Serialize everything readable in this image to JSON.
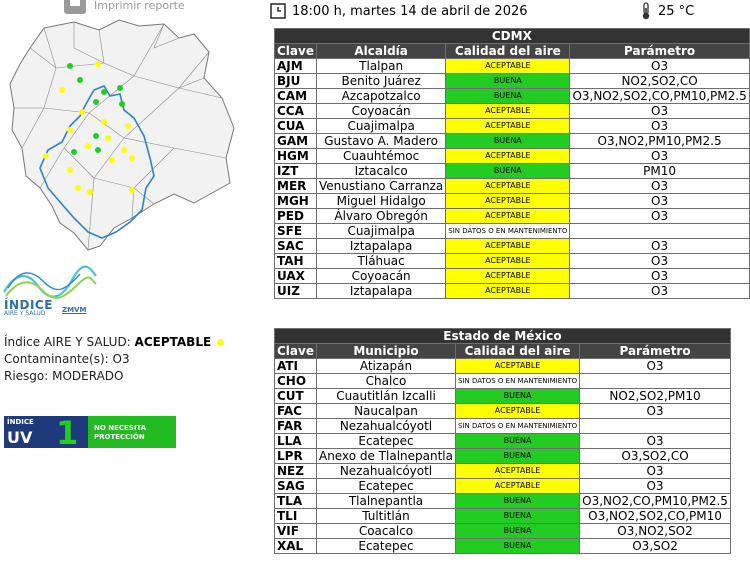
{
  "header": {
    "print_label": "Imprimir reporte",
    "datetime": "18:00 h, martes 14 de abril de 2026",
    "temperature": "25 °C"
  },
  "logo": {
    "title": "ÍNDICE",
    "subtitle": "AIRE Y SALUD",
    "region": "ZMVM"
  },
  "summary": {
    "index_label": "Índice AIRE Y SALUD: ",
    "index_value": "ACEPTABLE",
    "pollutant_label": "Contaminante(s): ",
    "pollutant_value": "O3",
    "risk_label": "Riesgo: ",
    "risk_value": "MODERADO"
  },
  "uv": {
    "index_small": "ÍNDICE",
    "uv_text": "UV",
    "value": "1",
    "message": "NO NECESITA PROTECCIÓN"
  },
  "colors": {
    "aceptable": "#ffff00",
    "buena": "#22cc22",
    "header": "#333333"
  },
  "cdmx": {
    "title": "CDMX",
    "headers": [
      "Clave",
      "Alcaldía",
      "Calidad del aire",
      "Parámetro"
    ],
    "rows": [
      {
        "code": "AJM",
        "name": "Tlalpan",
        "quality": "ACEPTABLE",
        "param": "O3"
      },
      {
        "code": "BJU",
        "name": "Benito Juárez",
        "quality": "BUENA",
        "param": "NO2,SO2,CO"
      },
      {
        "code": "CAM",
        "name": "Azcapotzalco",
        "quality": "BUENA",
        "param": "O3,NO2,SO2,CO,PM10,PM2.5"
      },
      {
        "code": "CCA",
        "name": "Coyoacán",
        "quality": "ACEPTABLE",
        "param": "O3"
      },
      {
        "code": "CUA",
        "name": "Cuajimalpa",
        "quality": "ACEPTABLE",
        "param": "O3"
      },
      {
        "code": "GAM",
        "name": "Gustavo A. Madero",
        "quality": "BUENA",
        "param": "O3,NO2,PM10,PM2.5"
      },
      {
        "code": "HGM",
        "name": "Cuauhtémoc",
        "quality": "ACEPTABLE",
        "param": "O3"
      },
      {
        "code": "IZT",
        "name": "Iztacalco",
        "quality": "BUENA",
        "param": "PM10"
      },
      {
        "code": "MER",
        "name": "Venustiano Carranza",
        "quality": "ACEPTABLE",
        "param": "O3"
      },
      {
        "code": "MGH",
        "name": "Miguel Hidalgo",
        "quality": "ACEPTABLE",
        "param": "O3"
      },
      {
        "code": "PED",
        "name": "Álvaro Obregón",
        "quality": "ACEPTABLE",
        "param": "O3"
      },
      {
        "code": "SFE",
        "name": "Cuajimalpa",
        "quality": "SIN DATOS O EN MANTENIMIENTO",
        "param": ""
      },
      {
        "code": "SAC",
        "name": "Iztapalapa",
        "quality": "ACEPTABLE",
        "param": "O3"
      },
      {
        "code": "TAH",
        "name": "Tláhuac",
        "quality": "ACEPTABLE",
        "param": "O3"
      },
      {
        "code": "UAX",
        "name": "Coyoacán",
        "quality": "ACEPTABLE",
        "param": "O3"
      },
      {
        "code": "UIZ",
        "name": "Iztapalapa",
        "quality": "ACEPTABLE",
        "param": "O3"
      }
    ]
  },
  "edomex": {
    "title": "Estado de México",
    "headers": [
      "Clave",
      "Municipio",
      "Calidad del aire",
      "Parámetro"
    ],
    "rows": [
      {
        "code": "ATI",
        "name": "Atizapán",
        "quality": "ACEPTABLE",
        "param": "O3"
      },
      {
        "code": "CHO",
        "name": "Chalco",
        "quality": "SIN DATOS O EN MANTENIMIENTO",
        "param": ""
      },
      {
        "code": "CUT",
        "name": "Cuautitlán Izcalli",
        "quality": "BUENA",
        "param": "NO2,SO2,PM10"
      },
      {
        "code": "FAC",
        "name": "Naucalpan",
        "quality": "ACEPTABLE",
        "param": "O3"
      },
      {
        "code": "FAR",
        "name": "Nezahualcóyotl",
        "quality": "SIN DATOS O EN MANTENIMIENTO",
        "param": ""
      },
      {
        "code": "LLA",
        "name": "Ecatepec",
        "quality": "BUENA",
        "param": "O3"
      },
      {
        "code": "LPR",
        "name": "Anexo de Tlalnepantla",
        "quality": "BUENA",
        "param": "O3,SO2,CO"
      },
      {
        "code": "NEZ",
        "name": "Nezahualcóyotl",
        "quality": "ACEPTABLE",
        "param": "O3"
      },
      {
        "code": "SAG",
        "name": "Ecatepec",
        "quality": "ACEPTABLE",
        "param": "O3"
      },
      {
        "code": "TLA",
        "name": "Tlalnepantla",
        "quality": "BUENA",
        "param": "O3,NO2,CO,PM10,PM2.5"
      },
      {
        "code": "TLI",
        "name": "Tultitlán",
        "quality": "BUENA",
        "param": "O3,NO2,SO2,CO,PM10"
      },
      {
        "code": "VIF",
        "name": "Coacalco",
        "quality": "BUENA",
        "param": "O3,NO2,SO2"
      },
      {
        "code": "XAL",
        "name": "Ecatepec",
        "quality": "BUENA",
        "param": "O3,SO2"
      }
    ]
  }
}
